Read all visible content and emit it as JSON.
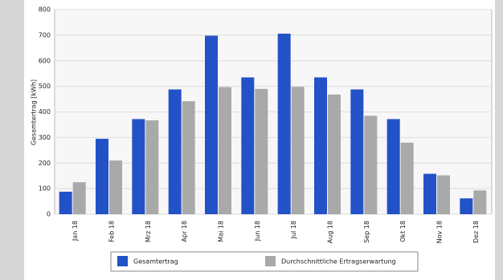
{
  "chart_data": {
    "type": "bar",
    "y_label": "Gesamtertrag [kWh]",
    "categories": [
      "Jan 18",
      "Feb 18",
      "Mrz 18",
      "Apr 18",
      "Mai 18",
      "Jun 18",
      "Jul 18",
      "Aug 18",
      "Sep 18",
      "Okt 18",
      "Nov 18",
      "Dez 18"
    ],
    "series": [
      {
        "name": "Gesamtertrag",
        "color": "#2352c8",
        "values": [
          88,
          295,
          372,
          488,
          698,
          535,
          706,
          535,
          488,
          372,
          158,
          62
        ]
      },
      {
        "name": "Durchschnittliche Ertragserwartung",
        "color": "#a9a9a9",
        "values": [
          125,
          210,
          367,
          442,
          497,
          490,
          498,
          468,
          385,
          280,
          152,
          93
        ]
      }
    ],
    "ylim": [
      0,
      800
    ],
    "yticks": [
      0,
      100,
      200,
      300,
      400,
      500,
      600,
      700,
      800
    ],
    "grid": true
  }
}
